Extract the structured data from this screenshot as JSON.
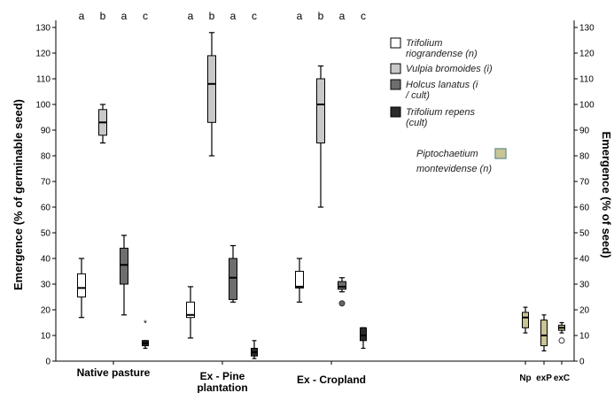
{
  "chart_data": {
    "type": "box",
    "ylabel_left": "Emergence (% of germinable seed)",
    "ylabel_right": "Emergence (% of seed)",
    "ylim": [
      0,
      130
    ],
    "yticks": [
      0,
      10,
      20,
      30,
      40,
      50,
      60,
      70,
      80,
      90,
      100,
      110,
      120,
      130
    ],
    "categories": [
      "Native pasture",
      "Ex - Pine plantation",
      "Ex - Cropland"
    ],
    "significance_letters": [
      "a",
      "b",
      "a",
      "c"
    ],
    "series": [
      {
        "name": "Trifolium riograndense (n)",
        "color": "#ffffff",
        "boxes": [
          {
            "min": 17,
            "q1": 25,
            "median": 28.5,
            "q3": 34,
            "max": 40
          },
          {
            "min": 9,
            "q1": 17,
            "median": 18,
            "q3": 23,
            "max": 29
          },
          {
            "min": 23,
            "q1": 28.5,
            "median": 29,
            "q3": 35,
            "max": 40
          }
        ]
      },
      {
        "name": "Vulpia bromoides (i)",
        "color": "#c8c8c8",
        "boxes": [
          {
            "min": 85,
            "q1": 88,
            "median": 93,
            "q3": 98,
            "max": 100
          },
          {
            "min": 80,
            "q1": 93,
            "median": 108,
            "q3": 119,
            "max": 128
          },
          {
            "min": 60,
            "q1": 85,
            "median": 100,
            "q3": 110,
            "max": 115
          }
        ]
      },
      {
        "name": "Holcus lanatus (i / cult)",
        "color": "#6e6e6e",
        "boxes": [
          {
            "min": 18,
            "q1": 30,
            "median": 37.5,
            "q3": 44,
            "max": 49
          },
          {
            "min": 23,
            "q1": 24,
            "median": 32.5,
            "q3": 40,
            "max": 45
          },
          {
            "min": 27,
            "q1": 28,
            "median": 29,
            "q3": 31,
            "max": 32.5,
            "outliers": [
              22.5
            ]
          }
        ]
      },
      {
        "name": "Trifolium repens (cult)",
        "color": "#2a2a2a",
        "boxes": [
          {
            "min": 5,
            "q1": 6,
            "median": 7,
            "q3": 8,
            "max": 8,
            "extremes": [
              15
            ]
          },
          {
            "min": 1,
            "q1": 2,
            "median": 3.5,
            "q3": 5,
            "max": 8
          },
          {
            "min": 5,
            "q1": 8,
            "median": 10,
            "q3": 13,
            "max": 13
          }
        ]
      }
    ],
    "inset": {
      "name": "Piptochaetium montevidense (n)",
      "color": "#c8c596",
      "categories": [
        "Np",
        "exP",
        "exC"
      ],
      "boxes": [
        {
          "min": 11,
          "q1": 13,
          "median": 17,
          "q3": 19,
          "max": 21
        },
        {
          "min": 4,
          "q1": 6,
          "median": 10,
          "q3": 16,
          "max": 18
        },
        {
          "min": 11,
          "q1": 12,
          "median": 13,
          "q3": 14,
          "max": 15,
          "outliers": [
            8
          ]
        }
      ]
    }
  }
}
